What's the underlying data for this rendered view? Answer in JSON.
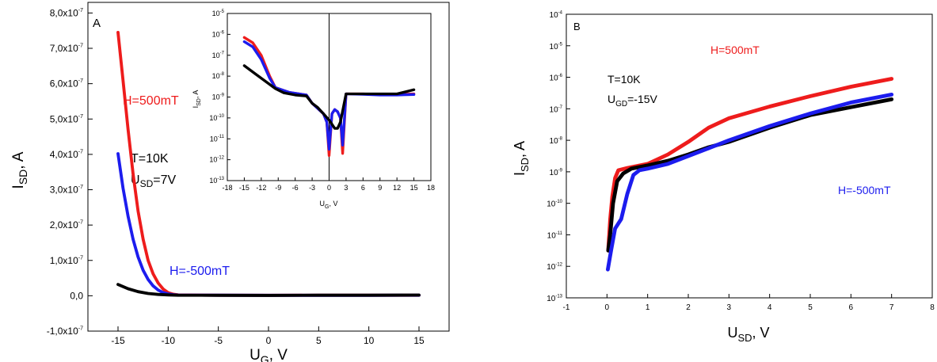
{
  "colors": {
    "red": "#ee1c1c",
    "blue": "#1c1cee",
    "black": "#000000"
  },
  "chart_data": [
    {
      "panel": "A",
      "type": "line",
      "xlabel": "U",
      "xlabel_sub": "G",
      "xlabel_unit": ", V",
      "ylabel": "I",
      "ylabel_sub": "SD",
      "ylabel_unit": ", A",
      "xlim": [
        -18,
        18
      ],
      "ylim": [
        -1e-07,
        8.3e-07
      ],
      "x_ticks": [
        -15,
        -10,
        -5,
        0,
        5,
        10,
        15
      ],
      "x_tick_labels": [
        "-15",
        "-10",
        "-5",
        "0",
        "5",
        "10",
        "15"
      ],
      "y_ticks": [
        -1e-07,
        0,
        1e-07,
        2e-07,
        3e-07,
        4e-07,
        5e-07,
        6e-07,
        7e-07,
        8e-07
      ],
      "y_tick_labels": [
        "-1,0x10",
        "0,0",
        "1,0x10",
        "2,0x10",
        "3,0x10",
        "4,0x10",
        "5,0x10",
        "6,0x10",
        "7,0x10",
        "8,0x10"
      ],
      "y_tick_exponent": "-7",
      "annotations": {
        "panel_label": "A",
        "red_label": "H=500mT",
        "blue_label": "H=-500mT",
        "temp": "T=10K",
        "usd_main": "U",
        "usd_sub": "SD",
        "usd_value": "=7V"
      },
      "series": [
        {
          "color": "red",
          "x": [
            -15,
            -14.5,
            -14,
            -13.5,
            -13,
            -12.5,
            -12,
            -11.5,
            -11,
            -10.5,
            -10,
            -9.5,
            -9,
            -5,
            0,
            5,
            10,
            15
          ],
          "y": [
            7.45e-07,
            6.1e-07,
            4.7e-07,
            3.45e-07,
            2.4e-07,
            1.6e-07,
            1e-07,
            6.2e-08,
            3.6e-08,
            1.9e-08,
            9e-09,
            4.5e-09,
            2.5e-09,
            1.6e-09,
            1.3e-09,
            1.5e-09,
            1.5e-09,
            1.6e-09
          ]
        },
        {
          "color": "blue",
          "x": [
            -15,
            -14.5,
            -14,
            -13.5,
            -13,
            -12.5,
            -12,
            -11.5,
            -11,
            -10.5,
            -10,
            -9.5,
            -9,
            -5,
            0,
            5,
            10,
            15
          ],
          "y": [
            4.02e-07,
            3.05e-07,
            2.25e-07,
            1.6e-07,
            1.1e-07,
            7.2e-08,
            4.6e-08,
            2.8e-08,
            1.6e-08,
            9e-09,
            5e-09,
            3e-09,
            2e-09,
            1.5e-09,
            1.2e-09,
            1.4e-09,
            1.4e-09,
            1.5e-09
          ]
        },
        {
          "color": "black",
          "x": [
            -15,
            -14,
            -13,
            -12,
            -11,
            -10,
            -9,
            -5,
            0,
            5,
            10,
            15
          ],
          "y": [
            3.2e-08,
            2e-08,
            1.15e-08,
            6.5e-09,
            3.8e-09,
            2.5e-09,
            1.6e-09,
            1.4e-09,
            1.1e-09,
            1.5e-09,
            1.6e-09,
            2e-09
          ]
        }
      ]
    },
    {
      "panel": "A inset",
      "type": "line",
      "scale": "log",
      "xlabel": "U",
      "xlabel_sub": "G",
      "xlabel_unit": ", V",
      "ylabel": "I",
      "ylabel_sub": "SD",
      "ylabel_unit": ", A",
      "xlim": [
        -18,
        18
      ],
      "ylim_exp": [
        -13,
        -5
      ],
      "x_ticks": [
        -18,
        -15,
        -12,
        -9,
        -6,
        -3,
        0,
        3,
        6,
        9,
        12,
        15,
        18
      ],
      "y_tick_exponents": [
        -13,
        -12,
        -11,
        -10,
        -9,
        -8,
        -7,
        -6,
        -5
      ],
      "series": [
        {
          "color": "red",
          "x": [
            -15,
            -13.5,
            -12,
            -10.5,
            -9.5,
            -7,
            -4,
            -3,
            -2.2,
            -1,
            -0.4,
            0,
            0.5,
            1,
            1.5,
            2,
            2.4,
            3,
            6,
            9,
            12,
            15
          ],
          "y_exp": [
            -6.15,
            -6.4,
            -7.0,
            -8.0,
            -8.55,
            -8.78,
            -8.9,
            -9.3,
            -9.5,
            -9.8,
            -10.2,
            -11.8,
            -9.8,
            -9.6,
            -9.7,
            -10.0,
            -11.7,
            -8.85,
            -8.85,
            -8.88,
            -8.88,
            -8.85
          ]
        },
        {
          "color": "blue",
          "x": [
            -15,
            -13.5,
            -12,
            -10.5,
            -9.5,
            -7,
            -4,
            -3,
            -2.2,
            -1,
            -0.4,
            0,
            0.5,
            1,
            1.5,
            2,
            2.4,
            3,
            6,
            9,
            12,
            15
          ],
          "y_exp": [
            -6.35,
            -6.6,
            -7.2,
            -8.1,
            -8.55,
            -8.78,
            -8.9,
            -9.3,
            -9.5,
            -9.8,
            -10.2,
            -11.5,
            -9.8,
            -9.6,
            -9.7,
            -10.0,
            -11.3,
            -8.85,
            -8.87,
            -8.9,
            -8.9,
            -8.88
          ]
        },
        {
          "color": "black",
          "x": [
            -15,
            -13,
            -11,
            -9.5,
            -8,
            -6,
            -4,
            -3,
            -2,
            -1,
            0,
            0.5,
            1,
            1.5,
            2,
            3,
            6,
            9,
            12,
            15
          ],
          "y_exp": [
            -7.5,
            -7.9,
            -8.3,
            -8.6,
            -8.8,
            -8.9,
            -8.95,
            -9.3,
            -9.5,
            -9.8,
            -10.1,
            -10.3,
            -10.5,
            -10.5,
            -10.2,
            -8.85,
            -8.85,
            -8.85,
            -8.85,
            -8.65
          ]
        }
      ]
    },
    {
      "panel": "B",
      "type": "line",
      "scale": "log",
      "xlabel": "U",
      "xlabel_sub": "SD",
      "xlabel_unit": ", V",
      "ylabel": "I",
      "ylabel_sub": "SD",
      "ylabel_unit": ", A",
      "xlim": [
        -1,
        8
      ],
      "ylim_exp": [
        -13,
        -4
      ],
      "x_ticks": [
        -1,
        0,
        1,
        2,
        3,
        4,
        5,
        6,
        7,
        8
      ],
      "y_tick_exponents": [
        -13,
        -12,
        -11,
        -10,
        -9,
        -8,
        -7,
        -6,
        -5,
        -4
      ],
      "annotations": {
        "panel_label": "B",
        "red_label": "H=500mT",
        "blue_label": "H=-500mT",
        "temp": "T=10K",
        "ugd_main": "U",
        "ugd_sub": "GD",
        "ugd_value": "=-15V"
      },
      "series": [
        {
          "color": "red",
          "x": [
            0.03,
            0.08,
            0.13,
            0.2,
            0.28,
            0.5,
            1,
            1.5,
            2,
            2.5,
            3,
            4,
            5,
            6,
            7
          ],
          "y_exp": [
            -11.5,
            -10.5,
            -9.8,
            -9.2,
            -8.95,
            -8.88,
            -8.75,
            -8.45,
            -8.05,
            -7.6,
            -7.3,
            -6.93,
            -6.6,
            -6.3,
            -6.05
          ]
        },
        {
          "color": "black",
          "x": [
            0.03,
            0.08,
            0.15,
            0.25,
            0.4,
            0.6,
            1,
            1.5,
            2,
            2.5,
            3,
            4,
            5,
            6,
            7
          ],
          "y_exp": [
            -11.5,
            -11.0,
            -10.0,
            -9.3,
            -9.05,
            -8.9,
            -8.8,
            -8.65,
            -8.45,
            -8.22,
            -8.05,
            -7.6,
            -7.2,
            -6.95,
            -6.7
          ]
        },
        {
          "color": "blue",
          "x": [
            0.02,
            0.1,
            0.2,
            0.35,
            0.5,
            0.65,
            0.8,
            1,
            1.5,
            2,
            2.5,
            3,
            4,
            5,
            6,
            7
          ],
          "y_exp": [
            -12.1,
            -11.5,
            -10.8,
            -10.5,
            -9.7,
            -9.1,
            -8.95,
            -8.9,
            -8.75,
            -8.5,
            -8.25,
            -8.0,
            -7.55,
            -7.15,
            -6.8,
            -6.55
          ]
        }
      ]
    }
  ]
}
